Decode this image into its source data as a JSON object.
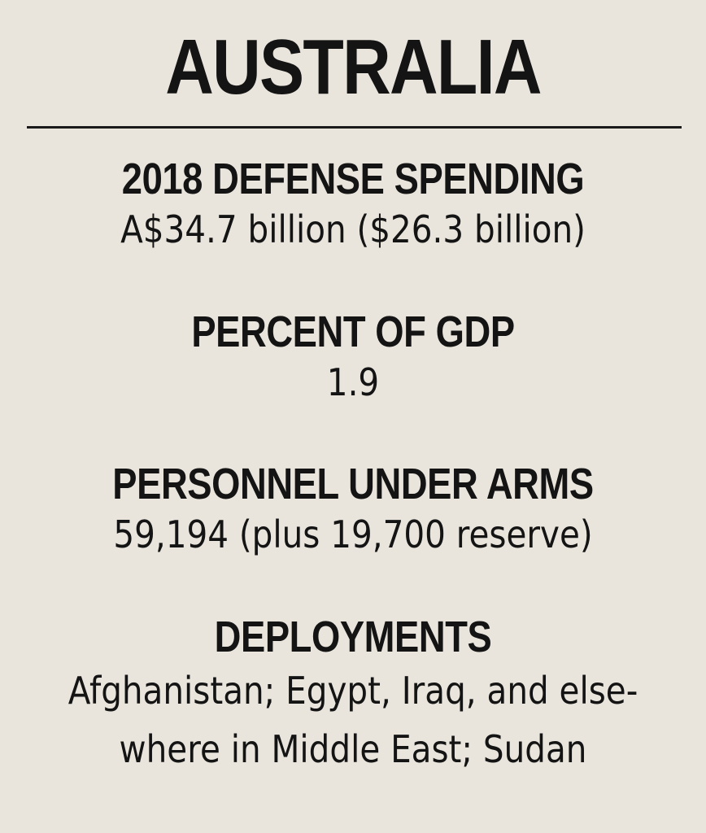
{
  "title": "AUSTRALIA",
  "sections": [
    {
      "heading": "2018 DEFENSE SPENDING",
      "value_lines": [
        "A$34.7 billion ($26.3 billion)"
      ]
    },
    {
      "heading": "PERCENT OF GDP",
      "value_lines": [
        "1.9"
      ]
    },
    {
      "heading": "PERSONNEL UNDER ARMS",
      "value_lines": [
        "59,194 (plus 19,700 reserve)"
      ]
    },
    {
      "heading": "DEPLOYMENTS",
      "value_lines": [
        "Afghanistan; Egypt, Iraq, and else-",
        "where in Middle East; Sudan"
      ]
    }
  ],
  "colors": {
    "background": "#e9e5dc",
    "text": "#141414"
  }
}
